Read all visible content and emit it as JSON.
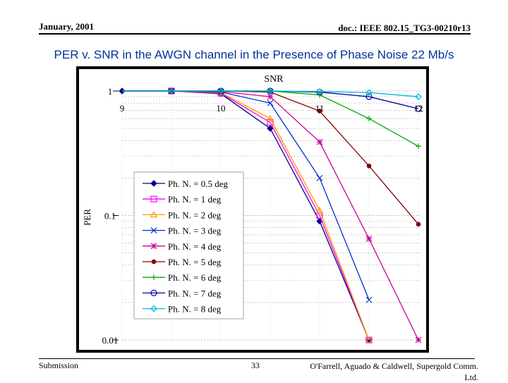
{
  "header": {
    "date": "January, 2001",
    "doc_id": "doc.: IEEE 802.15_TG3-00210r13"
  },
  "slide_title": "PER v. SNR in the AWGN channel in the Presence of Phase Noise 22 Mb/s",
  "footer": {
    "left": "Submission",
    "page": "33",
    "right": "O'Farrell, Aguado & Caldwell, Supergold Comm. Ltd."
  },
  "colors": {
    "frame": "#000000",
    "plot_bg": "#ffffff",
    "grid": "#bdbdbd",
    "title": "#003399"
  },
  "chart_data": {
    "type": "line",
    "title": "SNR",
    "xlabel": "SNR",
    "ylabel": "PER",
    "xlim": [
      9,
      12
    ],
    "ylim": [
      0.01,
      1
    ],
    "yscale": "log",
    "x_ticks": [
      "9",
      "10",
      "11",
      "12"
    ],
    "y_ticks": [
      "1",
      "0.1",
      "0.01"
    ],
    "legend_position": "left",
    "series": [
      {
        "name": "Ph. N. = 0.5 deg",
        "color": "#000080",
        "marker": "diamond-filled",
        "x": [
          9,
          9.5,
          10,
          10.5,
          11,
          11.5
        ],
        "y": [
          1,
          1,
          0.95,
          0.5,
          0.09,
          0.01
        ]
      },
      {
        "name": "Ph. N. = 1 deg",
        "color": "#ff00ff",
        "marker": "square",
        "x": [
          9,
          9.5,
          10,
          10.5,
          11,
          11.5
        ],
        "y": [
          1,
          1,
          0.96,
          0.56,
          0.1,
          0.01
        ]
      },
      {
        "name": "Ph. N. = 2 deg",
        "color": "#ff9900",
        "marker": "triangle",
        "x": [
          9,
          9.5,
          10,
          10.5,
          11,
          11.5
        ],
        "y": [
          1,
          1,
          0.97,
          0.6,
          0.11,
          0.01
        ]
      },
      {
        "name": "Ph. N. = 3 deg",
        "color": "#0033cc",
        "marker": "x",
        "x": [
          9,
          9.5,
          10,
          10.5,
          11,
          11.5
        ],
        "y": [
          1,
          1,
          0.98,
          0.8,
          0.2,
          0.021
        ]
      },
      {
        "name": "Ph. N. = 4 deg",
        "color": "#cc0099",
        "marker": "asterisk",
        "x": [
          9,
          9.5,
          10,
          10.5,
          11,
          11.5,
          12
        ],
        "y": [
          1,
          1,
          0.99,
          0.9,
          0.39,
          0.065,
          0.01
        ]
      },
      {
        "name": "Ph. N. = 5 deg",
        "color": "#800000",
        "marker": "circle-filled",
        "x": [
          9,
          9.5,
          10,
          10.5,
          11,
          11.5,
          12
        ],
        "y": [
          1,
          1,
          1,
          0.98,
          0.69,
          0.25,
          0.085
        ]
      },
      {
        "name": "Ph. N. = 6 deg",
        "color": "#00aa00",
        "marker": "plus",
        "x": [
          9,
          9.5,
          10,
          10.5,
          11,
          11.5,
          12
        ],
        "y": [
          1,
          1,
          1,
          1,
          0.93,
          0.6,
          0.36
        ]
      },
      {
        "name": "Ph. N. = 7 deg",
        "color": "#000099",
        "marker": "circle",
        "x": [
          9,
          9.5,
          10,
          10.5,
          11,
          11.5,
          12
        ],
        "y": [
          1,
          1,
          1,
          1,
          0.98,
          0.9,
          0.72
        ]
      },
      {
        "name": "Ph. N. = 8 deg",
        "color": "#00bbdd",
        "marker": "diamond",
        "x": [
          9,
          9.5,
          10,
          10.5,
          11,
          11.5,
          12
        ],
        "y": [
          1,
          1,
          1,
          1,
          0.99,
          0.97,
          0.9
        ]
      }
    ]
  }
}
